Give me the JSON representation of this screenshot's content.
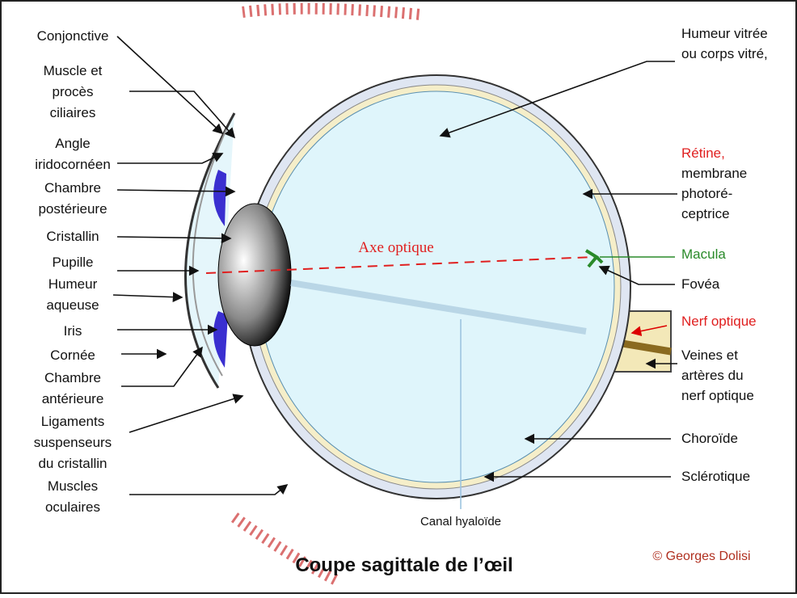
{
  "title": "Coupe sagittale de l’œil",
  "credit": "© Georges Dolisi",
  "left_labels": [
    {
      "lines": [
        "Conjonctive"
      ]
    },
    {
      "lines": [
        "Muscle et",
        "procès",
        "ciliaires"
      ]
    },
    {
      "lines": [
        "Angle",
        "iridocornéen"
      ]
    },
    {
      "lines": [
        "Chambre",
        "postérieure"
      ]
    },
    {
      "lines": [
        "Cristallin"
      ]
    },
    {
      "lines": [
        "Pupille"
      ]
    },
    {
      "lines": [
        "Humeur",
        "aqueuse"
      ]
    },
    {
      "lines": [
        "Iris"
      ]
    },
    {
      "lines": [
        "Cornée"
      ]
    },
    {
      "lines": [
        "Chambre",
        "antérieure"
      ]
    },
    {
      "lines": [
        "Ligaments",
        "suspenseurs",
        "du cristallin"
      ]
    },
    {
      "lines": [
        "Muscles",
        "oculaires"
      ]
    }
  ],
  "right_labels": [
    {
      "lines": [
        "Humeur vitrée",
        "ou corps vitré,"
      ]
    },
    {
      "lines": [
        "Rétine,",
        "membrane",
        "photoré-",
        "ceptrice"
      ]
    },
    {
      "lines": [
        "Macula"
      ]
    },
    {
      "lines": [
        "Fovéa"
      ]
    },
    {
      "lines": [
        "Nerf optique"
      ]
    },
    {
      "lines": [
        "Veines et",
        "artères du",
        "nerf optique"
      ]
    },
    {
      "lines": [
        "Choroïde"
      ]
    },
    {
      "lines": [
        "Sclérotique"
      ]
    }
  ],
  "center_labels": {
    "optical_axis": "Axe optique",
    "hyaloid_canal": "Canal hyaloïde"
  }
}
